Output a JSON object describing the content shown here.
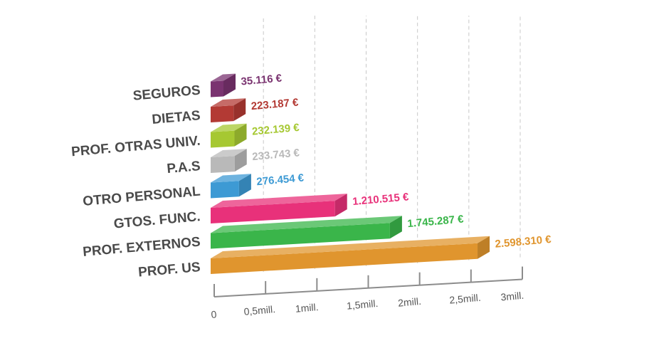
{
  "chart_data": {
    "type": "bar",
    "orientation": "horizontal",
    "style": "3d",
    "title": "",
    "categories": [
      "SEGUROS",
      "DIETAS",
      "PROF. OTRAS UNIV.",
      "P.A.S",
      "OTRO PERSONAL",
      "GTOS. FUNC.",
      "PROF. EXTERNOS",
      "PROF. US"
    ],
    "values": [
      35116,
      223187,
      232139,
      233743,
      276454,
      1210515,
      1745287,
      2598310
    ],
    "value_labels": [
      "35.116 €",
      "223.187 €",
      "232.139 €",
      "233.743 €",
      "276.454 €",
      "1.210.515 €",
      "1.745.287 €",
      "2.598.310 €"
    ],
    "colors": [
      "#7a3370",
      "#b33a34",
      "#a6c832",
      "#b9b9b9",
      "#3d9ad4",
      "#e8317a",
      "#3ab54a",
      "#e0952e"
    ],
    "x_ticks": [
      "0",
      "0,5mill.",
      "1mill.",
      "1,5mill.",
      "2mill.",
      "2,5mill.",
      "3mill."
    ],
    "xlim": [
      0,
      3000000
    ],
    "grid": true,
    "legend": "none"
  }
}
